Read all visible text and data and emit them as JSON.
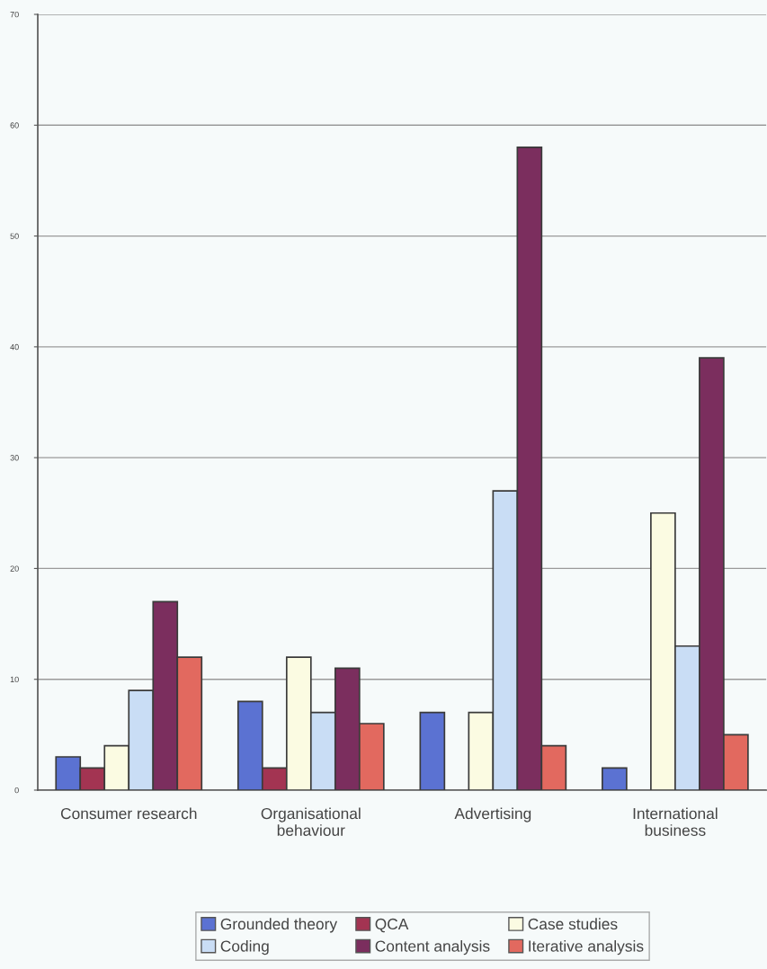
{
  "chart_data": {
    "type": "bar",
    "categories": [
      "Consumer research",
      "Organisational\nbehaviour",
      "Advertising",
      "International\nbusiness"
    ],
    "series": [
      {
        "name": "Grounded theory",
        "color": "#5b72d2",
        "values": [
          3,
          8,
          7,
          2
        ]
      },
      {
        "name": "QCA",
        "color": "#a33452",
        "values": [
          2,
          2,
          null,
          null
        ]
      },
      {
        "name": "Case studies",
        "color": "#fbfbe2",
        "values": [
          4,
          12,
          7,
          25
        ]
      },
      {
        "name": "Coding",
        "color": "#c9ddf5",
        "values": [
          9,
          7,
          27,
          13
        ]
      },
      {
        "name": "Content analysis",
        "color": "#7b2e5e",
        "values": [
          17,
          11,
          58,
          39
        ]
      },
      {
        "name": "Iterative analysis",
        "color": "#e2695f",
        "values": [
          12,
          6,
          4,
          5
        ]
      }
    ],
    "ylim": [
      0,
      70
    ],
    "yticks": [
      0,
      10,
      20,
      30,
      40,
      50,
      60,
      70
    ],
    "grid": "y",
    "legend": "bottom"
  }
}
